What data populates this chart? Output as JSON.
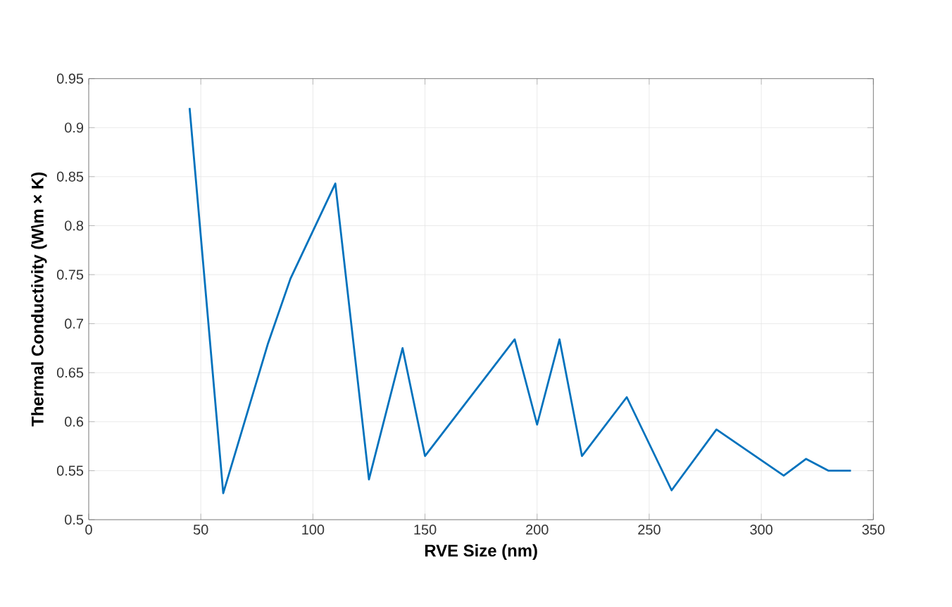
{
  "chart_data": {
    "type": "line",
    "xlabel": "RVE Size (nm)",
    "ylabel": "Thermal Conductivity (W\\m × K)",
    "x": [
      45,
      60,
      80,
      90,
      110,
      125,
      140,
      150,
      190,
      200,
      210,
      220,
      240,
      260,
      280,
      310,
      320,
      330,
      340
    ],
    "series": [
      {
        "color": "#0072bd",
        "values": [
          0.92,
          0.527,
          0.68,
          0.746,
          0.843,
          0.541,
          0.675,
          0.565,
          0.684,
          0.597,
          0.684,
          0.565,
          0.625,
          0.53,
          0.592,
          0.545,
          0.562,
          0.55,
          0.55
        ]
      }
    ],
    "xlim": [
      0,
      350
    ],
    "ylim": [
      0.5,
      0.95
    ],
    "xticks": [
      0,
      50,
      100,
      150,
      200,
      250,
      300,
      350
    ],
    "yticks": [
      0.5,
      0.55,
      0.6,
      0.65,
      0.7,
      0.75,
      0.8,
      0.85,
      0.9,
      0.95
    ],
    "grid": true,
    "marker": "none",
    "line_style": "solid"
  }
}
